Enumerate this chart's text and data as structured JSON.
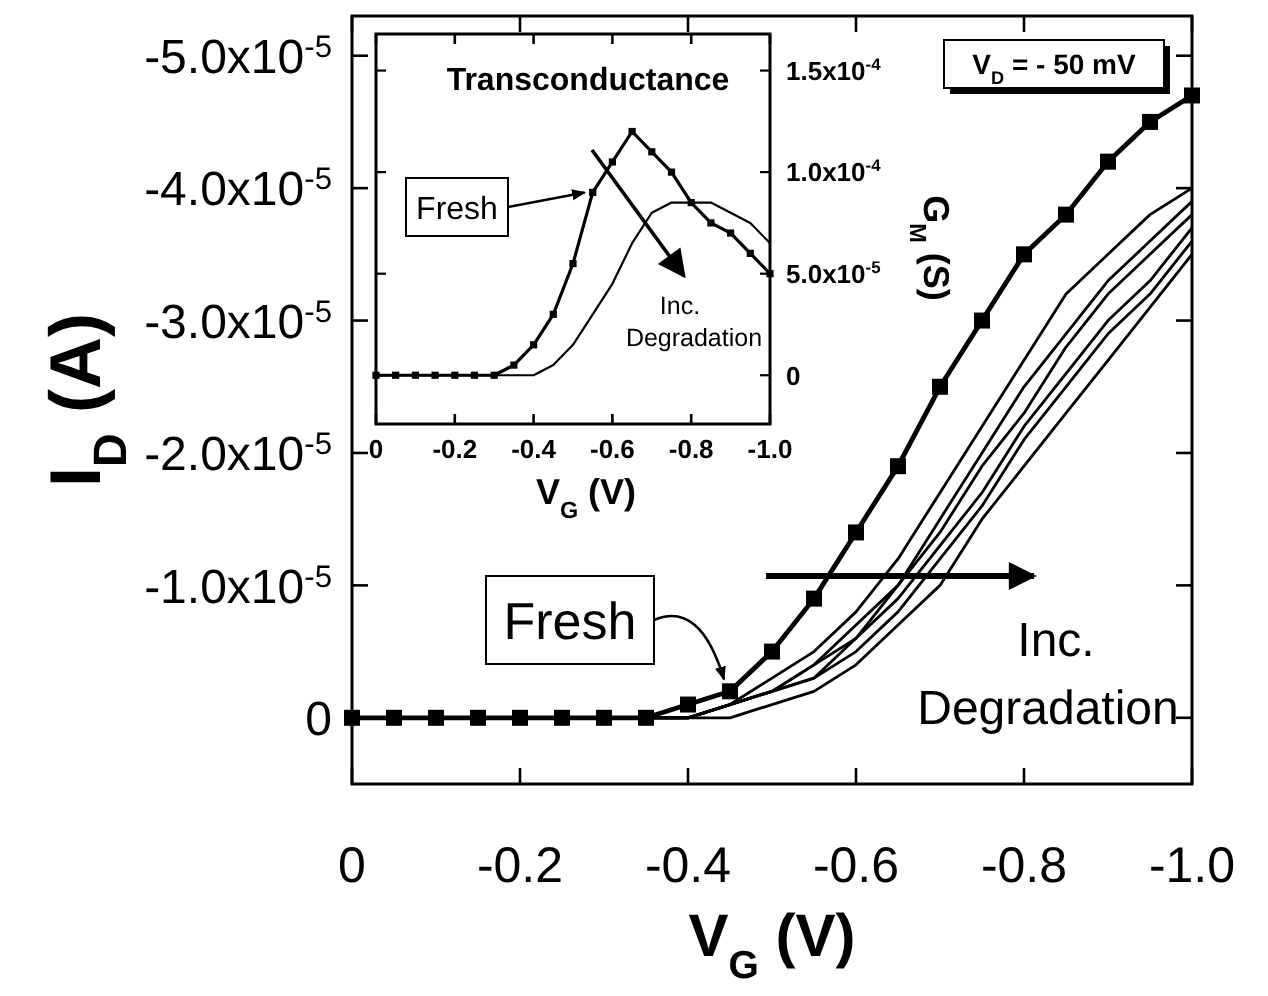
{
  "chart_data": [
    {
      "type": "line",
      "xlabel": "V$_{G}$ (V)",
      "ylabel": "I$_{D}$ (A)",
      "xlim": [
        0,
        -1.0
      ],
      "xticks": [
        0,
        -0.2,
        -0.4,
        -0.6,
        -0.8,
        {
          "value": -1.0,
          "label": "-1.0"
        }
      ],
      "ylim": [
        5e-06,
        -5.3e-05
      ],
      "yticks": [
        0,
        {
          "value": -1e-05,
          "label": "-1.0x10$^{-5}$"
        },
        {
          "value": -2e-05,
          "label": "-2.0x10$^{-5}$"
        },
        {
          "value": -3e-05,
          "label": "-3.0x10$^{-5}$"
        },
        {
          "value": -4e-05,
          "label": "-4.0x10$^{-5}$"
        },
        {
          "value": -5e-05,
          "label": "-5.0x10$^{-5}$"
        }
      ],
      "series": [
        {
          "name": "Fresh",
          "color": "#000000",
          "marker": "square",
          "x": [
            0,
            -0.05,
            -0.1,
            -0.15,
            -0.2,
            -0.25,
            -0.3,
            -0.35,
            -0.4,
            -0.45,
            -0.5,
            -0.55,
            -0.6,
            -0.65,
            -0.7,
            -0.75,
            -0.8,
            -0.85,
            -0.9,
            -0.95,
            -1.0
          ],
          "values": [
            0,
            0,
            0,
            0,
            0,
            0,
            0,
            0,
            -1e-06,
            -2e-06,
            -5e-06,
            -9e-06,
            -1.4e-05,
            -1.9e-05,
            -2.5e-05,
            -3e-05,
            -3.5e-05,
            -3.8e-05,
            -4.2e-05,
            -4.5e-05,
            -4.7e-05
          ]
        },
        {
          "color": "#000000",
          "marker": "none",
          "x": [
            0,
            -0.3,
            -0.35,
            -0.4,
            -0.45,
            -0.5,
            -0.55,
            -0.6,
            -0.65,
            -0.7,
            -0.75,
            -0.8,
            -0.85,
            -0.9,
            -0.95,
            -1.0
          ],
          "values": [
            0,
            0,
            0,
            0,
            -1e-06,
            -3e-06,
            -5e-06,
            -8e-06,
            -1.2e-05,
            -1.7e-05,
            -2.2e-05,
            -2.7e-05,
            -3.2e-05,
            -3.5e-05,
            -3.8e-05,
            -4e-05
          ]
        },
        {
          "color": "#000000",
          "marker": "none",
          "x": [
            0,
            -0.3,
            -0.35,
            -0.4,
            -0.45,
            -0.5,
            -0.55,
            -0.6,
            -0.65,
            -0.7,
            -0.75,
            -0.8,
            -0.85,
            -0.9,
            -0.95,
            -1.0
          ],
          "values": [
            0,
            0,
            0,
            0,
            -1e-06,
            -2e-06,
            -4e-06,
            -7e-06,
            -1e-05,
            -1.5e-05,
            -2e-05,
            -2.5e-05,
            -2.9e-05,
            -3.3e-05,
            -3.6e-05,
            -3.9e-05
          ]
        },
        {
          "color": "#000000",
          "marker": "none",
          "x": [
            0,
            -0.3,
            -0.35,
            -0.4,
            -0.45,
            -0.5,
            -0.55,
            -0.6,
            -0.65,
            -0.7,
            -0.75,
            -0.8,
            -0.85,
            -0.9,
            -0.95,
            -1.0
          ],
          "values": [
            0,
            0,
            0,
            0,
            -1e-06,
            -2e-06,
            -4e-06,
            -6e-06,
            -1e-05,
            -1.4e-05,
            -1.9e-05,
            -2.3e-05,
            -2.8e-05,
            -3.2e-05,
            -3.5e-05,
            -3.8e-05
          ]
        },
        {
          "color": "#000000",
          "marker": "none",
          "x": [
            0,
            -0.3,
            -0.35,
            -0.4,
            -0.45,
            -0.5,
            -0.55,
            -0.6,
            -0.65,
            -0.7,
            -0.75,
            -0.8,
            -0.85,
            -0.9,
            -0.95,
            -1.0
          ],
          "values": [
            0,
            0,
            0,
            0,
            -1e-06,
            -2e-06,
            -3e-06,
            -6e-06,
            -9e-06,
            -1.3e-05,
            -1.7e-05,
            -2.2e-05,
            -2.6e-05,
            -3e-05,
            -3.3e-05,
            -3.7e-05
          ]
        },
        {
          "color": "#000000",
          "marker": "none",
          "x": [
            0,
            -0.3,
            -0.35,
            -0.4,
            -0.45,
            -0.5,
            -0.55,
            -0.6,
            -0.65,
            -0.7,
            -0.75,
            -0.8,
            -0.85,
            -0.9,
            -0.95,
            -1.0
          ],
          "values": [
            0,
            0,
            0,
            0,
            -1e-06,
            -2e-06,
            -3e-06,
            -5e-06,
            -8e-06,
            -1.2e-05,
            -1.6e-05,
            -2.1e-05,
            -2.5e-05,
            -2.9e-05,
            -3.2e-05,
            -3.6e-05
          ]
        },
        {
          "color": "#000000",
          "marker": "none",
          "x": [
            0,
            -0.3,
            -0.35,
            -0.4,
            -0.45,
            -0.5,
            -0.55,
            -0.6,
            -0.65,
            -0.7,
            -0.75,
            -0.8,
            -0.85,
            -0.9,
            -0.95,
            -1.0
          ],
          "values": [
            0,
            0,
            0,
            0,
            0,
            -1e-06,
            -2e-06,
            -4e-06,
            -7e-06,
            -1e-05,
            -1.5e-05,
            -1.9e-05,
            -2.3e-05,
            -2.7e-05,
            -3.1e-05,
            -3.5e-05
          ]
        }
      ],
      "annotations": [
        "Inc.\nDegradation",
        "V$_{D}$ = - 50 mV"
      ]
    },
    {
      "type": "line",
      "title": "Transconductance",
      "xlabel": "V$_{G}$ (V)",
      "y2label": "G$_{M}$ (S)",
      "xlim": [
        0,
        -1.0
      ],
      "xticks": [
        0,
        -0.2,
        -0.4,
        -0.6,
        -0.8,
        {
          "value": -1.0,
          "label": "-1.0"
        }
      ],
      "y2lim": [
        -2.4e-05,
        0.000168
      ],
      "y2ticks": [
        0,
        {
          "value": 5e-05,
          "label": "5.0x10$^{-5}$"
        },
        {
          "value": 0.0001,
          "label": "1.0x10$^{-4}$"
        },
        {
          "value": 0.00015,
          "label": "1.5x10$^{-4}$"
        }
      ],
      "series": [
        {
          "name": "Fresh",
          "color": "#000000",
          "marker": "square",
          "axis": "y2",
          "x": [
            0,
            -0.05,
            -0.1,
            -0.15,
            -0.2,
            -0.25,
            -0.3,
            -0.35,
            -0.4,
            -0.45,
            -0.5,
            -0.55,
            -0.6,
            -0.65,
            -0.7,
            -0.75,
            -0.8,
            -0.85,
            -0.9,
            -0.95,
            -1.0
          ],
          "values": [
            0,
            0,
            0,
            0,
            0,
            0,
            0,
            5e-06,
            1.5e-05,
            3e-05,
            5.5e-05,
            9e-05,
            0.000105,
            0.00012,
            0.00011,
            0.0001,
            8.5e-05,
            7.5e-05,
            7e-05,
            6e-05,
            5e-05
          ]
        },
        {
          "color": "#000000",
          "marker": "none",
          "axis": "y2",
          "x": [
            0,
            -0.05,
            -0.1,
            -0.15,
            -0.2,
            -0.25,
            -0.3,
            -0.35,
            -0.4,
            -0.45,
            -0.5,
            -0.55,
            -0.6,
            -0.65,
            -0.7,
            -0.75,
            -0.8,
            -0.85,
            -0.9,
            -0.95,
            -1.0
          ],
          "values": [
            0,
            0,
            0,
            0,
            0,
            0,
            0,
            0,
            0,
            5e-06,
            1.5e-05,
            3e-05,
            4.5e-05,
            6.5e-05,
            8e-05,
            8.5e-05,
            8.5e-05,
            8.5e-05,
            8e-05,
            7.5e-05,
            6.5e-05
          ]
        }
      ],
      "annotations": [
        "Inc.\nDegradation"
      ]
    }
  ]
}
